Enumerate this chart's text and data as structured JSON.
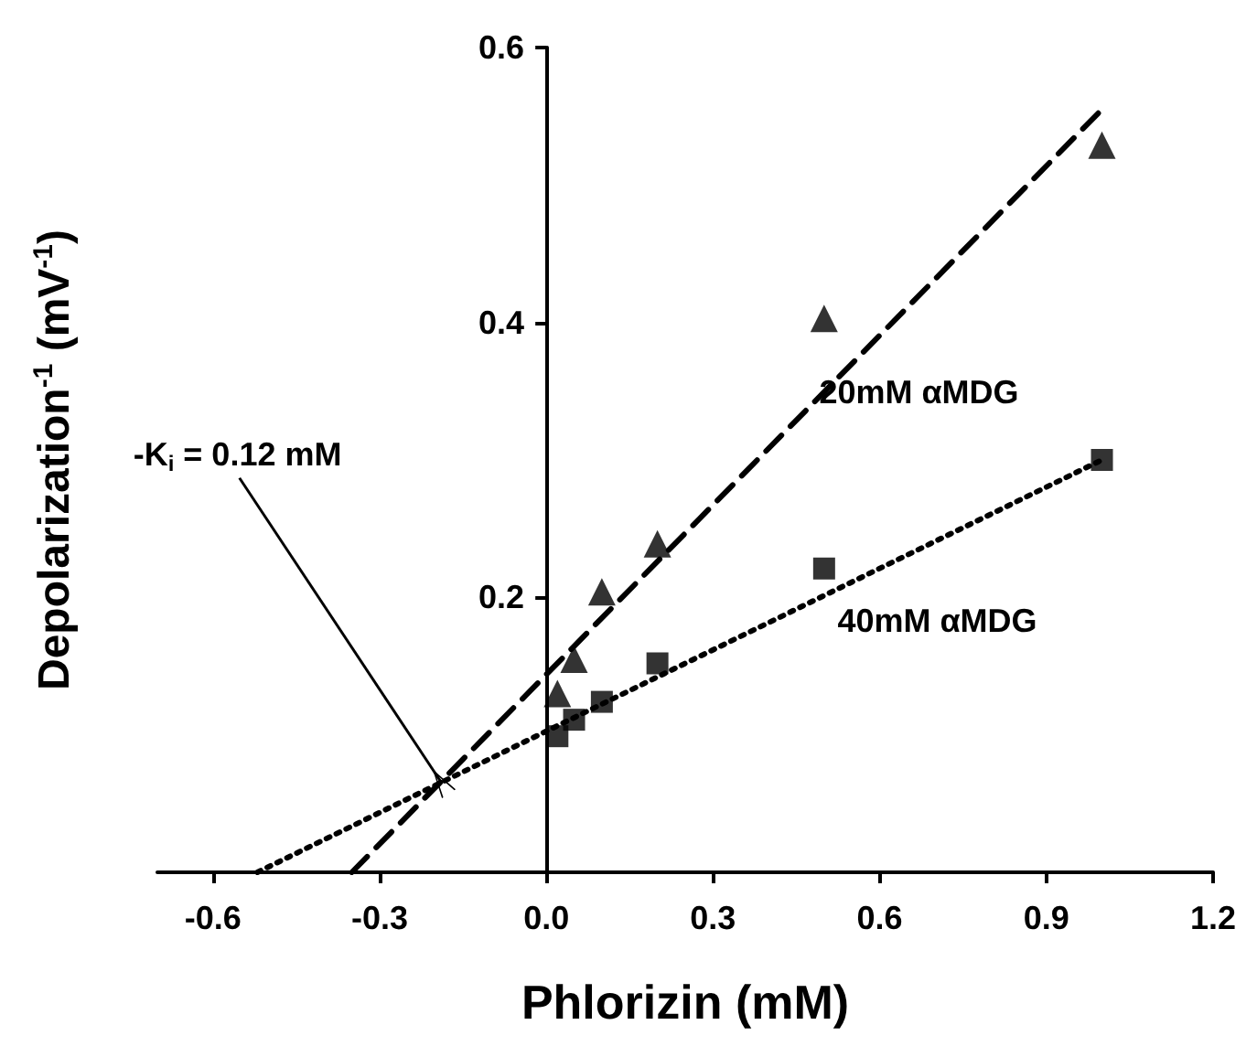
{
  "chart_data": {
    "type": "scatter",
    "xlabel": "Phlorizin (mM)",
    "ylabel": "Depolarization$^{-1}$ (mV$^{-1}$)",
    "xlim": [
      -0.7,
      1.2
    ],
    "xticks": [
      -0.6,
      -0.3,
      {
        "value": 0,
        "label": "0.0"
      },
      0.3,
      0.6,
      0.9,
      1.2
    ],
    "ylim": [
      0,
      0.6
    ],
    "yticks": [
      {
        "value": 0,
        "label": null
      },
      0.2,
      0.4,
      0.6
    ],
    "series": [
      {
        "name": "20mM αMDG",
        "color": "#000000",
        "marker": "triangle",
        "x": [
          0.02,
          0.05,
          0.1,
          0.2,
          0.5,
          1.0
        ],
        "values": [
          0.13,
          0.155,
          0.204,
          0.239,
          0.403,
          0.529
        ]
      },
      {
        "name": "40mM αMDG",
        "color": "#000000",
        "marker": "square",
        "x": [
          0.02,
          0.05,
          0.1,
          0.2,
          0.5,
          1.0
        ],
        "values": [
          0.099,
          0.111,
          0.124,
          0.152,
          0.221,
          0.3
        ]
      },
      {
        "type": "line",
        "color": "#000000",
        "line_style": "dashed",
        "marker": "none",
        "x": [
          -0.35,
          1.0
        ],
        "values": [
          0,
          0.555
        ]
      },
      {
        "type": "line",
        "color": "#000000",
        "line_style": "dotted",
        "marker": "none",
        "x": [
          -0.52,
          1.0
        ],
        "values": [
          0,
          0.3
        ]
      }
    ],
    "annotations": [
      {
        "text": "-K$_{i}$ = 0.12 mM",
        "x": -0.19,
        "y": 0.066
      }
    ],
    "grid": false,
    "legend": false
  }
}
